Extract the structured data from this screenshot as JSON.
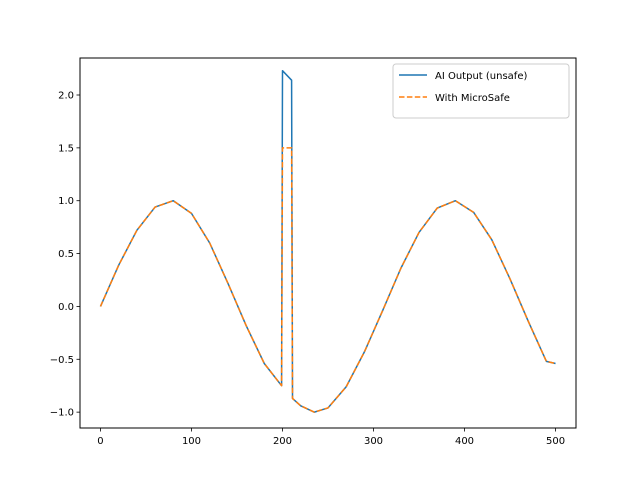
{
  "chart_data": {
    "type": "line",
    "title": "",
    "xlabel": "",
    "ylabel": "",
    "xlim": [
      -22.5,
      522.5
    ],
    "ylim": [
      -1.15,
      2.35
    ],
    "x_ticks": [
      0,
      100,
      200,
      300,
      400,
      500
    ],
    "y_ticks": [
      -1.0,
      -0.5,
      0.0,
      0.5,
      1.0,
      1.5,
      2.0
    ],
    "x_tick_labels": [
      "0",
      "100",
      "200",
      "300",
      "400",
      "500"
    ],
    "y_tick_labels": [
      "−1.0",
      "−0.5",
      "0.0",
      "0.5",
      "1.0",
      "1.5",
      "2.0"
    ],
    "grid": false,
    "legend_position": "top-right",
    "series": [
      {
        "name": "AI Output (unsafe)",
        "color": "#1f77b4",
        "style": "solid",
        "x": [
          0,
          20,
          40,
          60,
          80,
          100,
          120,
          140,
          160,
          180,
          199,
          200,
          210,
          211,
          220,
          235,
          250,
          270,
          290,
          310,
          330,
          350,
          370,
          390,
          410,
          430,
          450,
          470,
          490,
          500
        ],
        "y": [
          0.0,
          0.39,
          0.72,
          0.94,
          1.0,
          0.88,
          0.6,
          0.22,
          -0.18,
          -0.54,
          -0.75,
          2.23,
          2.14,
          -0.87,
          -0.94,
          -1.0,
          -0.96,
          -0.76,
          -0.43,
          -0.04,
          0.36,
          0.7,
          0.93,
          1.0,
          0.89,
          0.63,
          0.26,
          -0.14,
          -0.52,
          -0.54
        ]
      },
      {
        "name": "With MicroSafe",
        "color": "#ff7f0e",
        "style": "dashed",
        "x": [
          0,
          20,
          40,
          60,
          80,
          100,
          120,
          140,
          160,
          180,
          199,
          200,
          210,
          211,
          220,
          235,
          250,
          270,
          290,
          310,
          330,
          350,
          370,
          390,
          410,
          430,
          450,
          470,
          490,
          500
        ],
        "y": [
          0.0,
          0.39,
          0.72,
          0.94,
          1.0,
          0.88,
          0.6,
          0.22,
          -0.18,
          -0.54,
          -0.75,
          1.5,
          1.5,
          -0.87,
          -0.94,
          -1.0,
          -0.96,
          -0.76,
          -0.43,
          -0.04,
          0.36,
          0.7,
          0.93,
          1.0,
          0.89,
          0.63,
          0.26,
          -0.14,
          -0.52,
          -0.54
        ]
      }
    ]
  }
}
